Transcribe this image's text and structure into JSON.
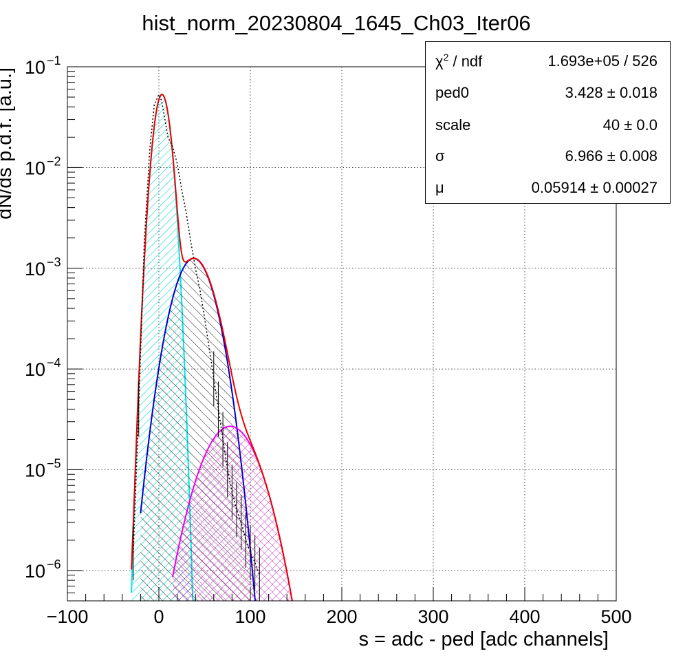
{
  "chart_data": {
    "type": "histogram-fit",
    "title": "hist_norm_20230804_1645_Ch03_Iter06",
    "xlabel": "s = adc - ped [adc channels]",
    "ylabel": "dN/ds p.d.f. [a.u.]",
    "xlim": [
      -100,
      500
    ],
    "ylim": [
      5e-07,
      0.1
    ],
    "yscale": "log",
    "grid": true,
    "x_ticks": [
      "−100",
      "0",
      "100",
      "200",
      "300",
      "400",
      "500"
    ],
    "y_ticks": [
      {
        "base": "10",
        "exp": "−1"
      },
      {
        "base": "10",
        "exp": "−2"
      },
      {
        "base": "10",
        "exp": "−3"
      },
      {
        "base": "10",
        "exp": "−4"
      },
      {
        "base": "10",
        "exp": "−5"
      },
      {
        "base": "10",
        "exp": "−6"
      }
    ],
    "fit_params": {
      "ped0": 3.428,
      "scale": 40,
      "sigma": 6.966,
      "mu": 0.05914
    },
    "series": [
      {
        "role": "data",
        "color": "#000000",
        "x": [
          -28,
          -22,
          -16,
          -10,
          -5,
          0,
          3,
          6,
          10,
          15,
          20,
          25,
          30,
          35,
          40,
          45,
          50,
          55,
          60,
          65,
          70,
          75,
          80,
          85,
          90,
          95,
          100,
          105,
          110
        ],
        "y": [
          1.5e-06,
          4e-05,
          0.0018,
          0.015,
          0.042,
          0.053,
          0.046,
          0.032,
          0.02,
          0.016,
          0.011,
          0.006,
          0.0035,
          0.0018,
          0.001,
          0.0006,
          0.00032,
          0.00016,
          8e-05,
          4e-05,
          2e-05,
          1e-05,
          6e-06,
          4e-06,
          3e-06,
          2e-06,
          1.5e-06,
          1.2e-06,
          9e-07
        ]
      },
      {
        "role": "pedestal",
        "color": "#00e5e5",
        "peak_x": 3.4,
        "peak_y": 0.053,
        "width": 7.0
      },
      {
        "role": "1-pe",
        "color": "#0000cc",
        "peak_x": 38,
        "peak_y": 0.00125,
        "width": 17
      },
      {
        "role": "2-pe",
        "color": "#ee00ee",
        "peak_x": 78,
        "peak_y": 2.7e-05,
        "width": 24
      },
      {
        "role": "total",
        "color": "#ee0000"
      }
    ]
  },
  "stats": [
    {
      "name": "χ",
      "sup": "2",
      "suffix": " / ndf",
      "value": "1.693e+05 / 526"
    },
    {
      "name": "ped0",
      "sup": "",
      "suffix": "",
      "value": "3.428 ± 0.018"
    },
    {
      "name": "scale",
      "sup": "",
      "suffix": "",
      "value": "40 ± 0.0"
    },
    {
      "name": "σ",
      "sup": "",
      "suffix": "",
      "value": "6.966 ± 0.008"
    },
    {
      "name": "μ",
      "sup": "",
      "suffix": "",
      "value": "0.05914 ± 0.00027"
    }
  ]
}
